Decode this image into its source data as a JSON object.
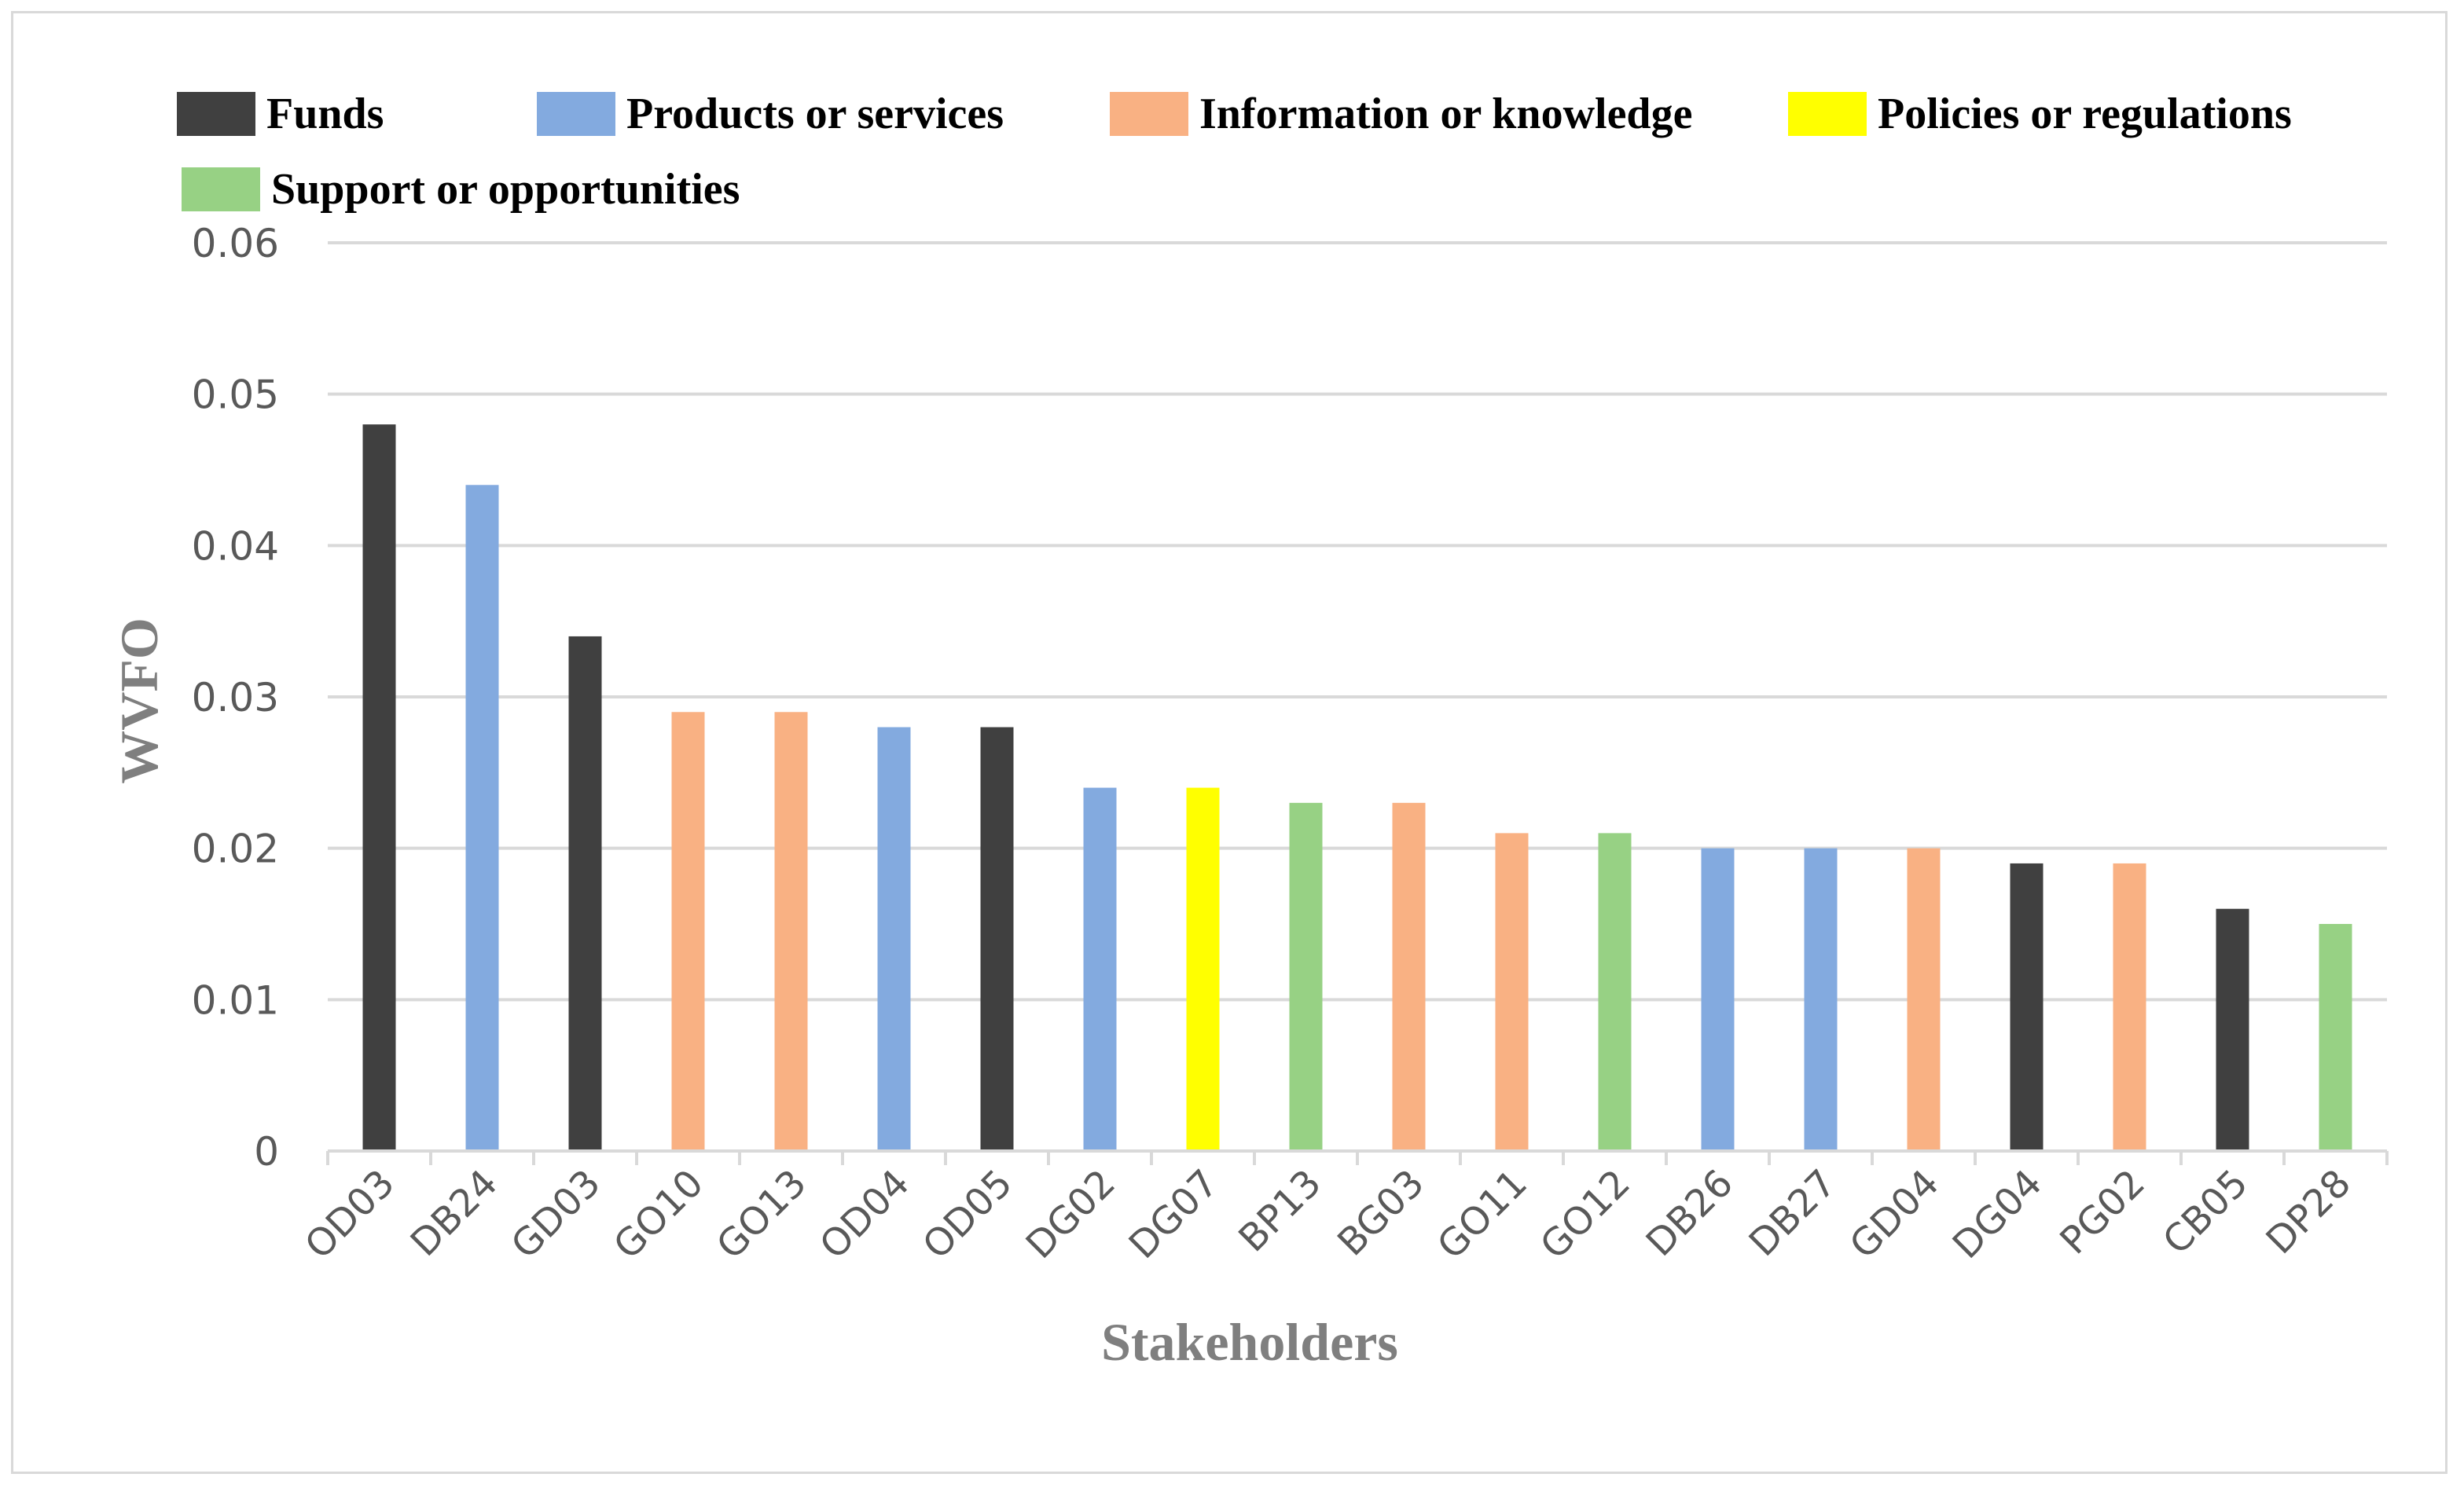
{
  "chart_data": {
    "type": "bar",
    "title": "",
    "xlabel": "Stakeholders",
    "ylabel": "WVFO",
    "ylim": [
      0,
      0.06
    ],
    "yticks": [
      "0",
      "0.01",
      "0.02",
      "0.03",
      "0.04",
      "0.05",
      "0.06"
    ],
    "grid": true,
    "legend_position": "top",
    "legend": [
      {
        "name": "Funds",
        "color": "#404040"
      },
      {
        "name": "Products or services",
        "color": "#83aadf"
      },
      {
        "name": "Information or knowledge",
        "color": "#f9b183"
      },
      {
        "name": "Policies or regulations",
        "color": "#ffff00"
      },
      {
        "name": "Support or opportunities",
        "color": "#97d184"
      }
    ],
    "categories": [
      "OD03",
      "DB24",
      "GD03",
      "GO10",
      "GO13",
      "OD04",
      "OD05",
      "DG02",
      "DG07",
      "BP13",
      "BG03",
      "GO11",
      "GO12",
      "DB26",
      "DB27",
      "GD04",
      "DG04",
      "PG02",
      "CB05",
      "DP28"
    ],
    "values": [
      0.048,
      0.044,
      0.034,
      0.029,
      0.029,
      0.028,
      0.028,
      0.024,
      0.024,
      0.023,
      0.023,
      0.021,
      0.021,
      0.02,
      0.02,
      0.02,
      0.019,
      0.019,
      0.016,
      0.015
    ],
    "groups": [
      "Funds",
      "Products or services",
      "Funds",
      "Information or knowledge",
      "Information or knowledge",
      "Products or services",
      "Funds",
      "Products or services",
      "Policies or regulations",
      "Support or opportunities",
      "Information or knowledge",
      "Information or knowledge",
      "Support or opportunities",
      "Products or services",
      "Products or services",
      "Information or knowledge",
      "Funds",
      "Information or knowledge",
      "Funds",
      "Support or opportunities"
    ]
  }
}
